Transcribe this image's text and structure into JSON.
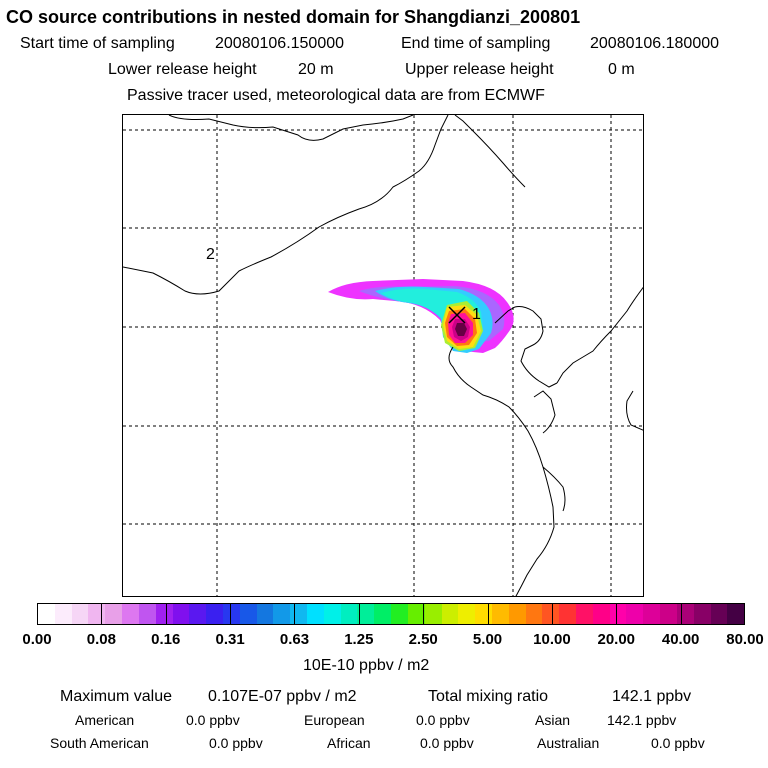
{
  "header": {
    "title": "CO  source contributions in nested domain for Shangdianzi_200801",
    "start_time_label": "Start time of sampling",
    "start_time_value": "20080106.150000",
    "end_time_label": "End time of sampling",
    "end_time_value": "20080106.180000",
    "lower_release_label": "Lower release height",
    "lower_release_value": "20 m",
    "upper_release_label": "Upper release height",
    "upper_release_value": "0 m",
    "tracer_note": "Passive tracer used, meteorological data are from ECMWF"
  },
  "map": {
    "markers": [
      {
        "id": "receptor",
        "label": "1"
      },
      {
        "id": "secondary",
        "label": "2"
      }
    ],
    "plume_colors": [
      "#ee33ff",
      "#aa66ff",
      "#33ccff",
      "#22eedd",
      "#aaee33",
      "#ffdd11",
      "#ff7711",
      "#ff1199",
      "#cc0088",
      "#660044"
    ]
  },
  "colorbar": {
    "colors": [
      "#ffffff",
      "#fcecfc",
      "#f6d6f6",
      "#f0b6f0",
      "#e8a0e8",
      "#dd77f0",
      "#c055f0",
      "#a020f0",
      "#8010ee",
      "#5a18f0",
      "#3a20f0",
      "#2838f0",
      "#1858e8",
      "#1477e0",
      "#1299e8",
      "#10b8f0",
      "#00e0ff",
      "#00f0e8",
      "#00eec0",
      "#00ee99",
      "#00ee66",
      "#22ee22",
      "#66ee00",
      "#99ee00",
      "#ccee00",
      "#eeee00",
      "#ffdd00",
      "#ffbb00",
      "#ff9900",
      "#ff7711",
      "#ff5522",
      "#ff3333",
      "#ff1166",
      "#ff0088",
      "#ff00aa",
      "#ee00aa",
      "#dd0099",
      "#cc0088",
      "#aa0077",
      "#880066",
      "#660055",
      "#440044"
    ],
    "ticks": [
      "0.00",
      "0.08",
      "0.16",
      "0.31",
      "0.63",
      "1.25",
      "2.50",
      "5.00",
      "10.00",
      "20.00",
      "40.00",
      "80.00"
    ],
    "unit": "10E-10 ppbv / m2"
  },
  "stats": {
    "max_label": "Maximum value",
    "max_value": "0.107E-07 ppbv / m2",
    "total_label": "Total mixing ratio",
    "total_value": "142.1 ppbv",
    "regions": [
      {
        "name": "American",
        "value": "0.0 ppbv"
      },
      {
        "name": "European",
        "value": "0.0 ppbv"
      },
      {
        "name": "Asian",
        "value": "142.1 ppbv"
      },
      {
        "name": "South American",
        "value": "0.0 ppbv"
      },
      {
        "name": "African",
        "value": "0.0 ppbv"
      },
      {
        "name": "Australian",
        "value": "0.0 ppbv"
      }
    ]
  }
}
